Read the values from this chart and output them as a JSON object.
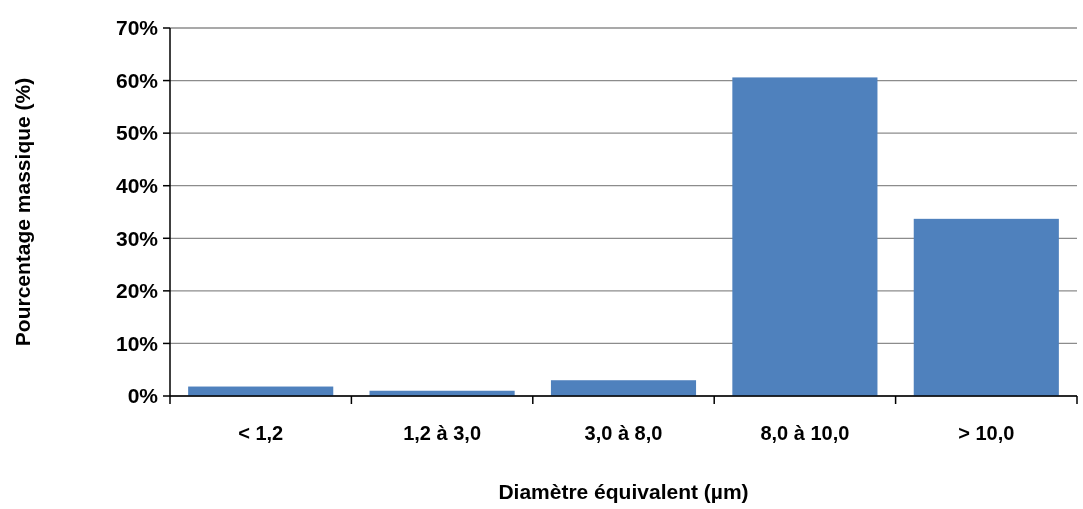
{
  "chart_data": {
    "type": "bar",
    "xlabel": "Diamètre équivalent (µm)",
    "ylabel": "Pourcentage massique (%)",
    "categories": [
      "< 1,2",
      "1,2 à 3,0",
      "3,0 à 8,0",
      "8,0 à 10,0",
      "> 10,0"
    ],
    "values": [
      1.8,
      1.0,
      3.0,
      60.6,
      33.7
    ],
    "color": "#4f81bd",
    "ylim": [
      0,
      70
    ],
    "yticks": [
      {
        "value": 0,
        "label": "0%"
      },
      {
        "value": 10,
        "label": "10%"
      },
      {
        "value": 20,
        "label": "20%"
      },
      {
        "value": 30,
        "label": "30%"
      },
      {
        "value": 40,
        "label": "40%"
      },
      {
        "value": 50,
        "label": "50%"
      },
      {
        "value": 60,
        "label": "60%"
      },
      {
        "value": 70,
        "label": "70%"
      }
    ],
    "grid": "y"
  }
}
